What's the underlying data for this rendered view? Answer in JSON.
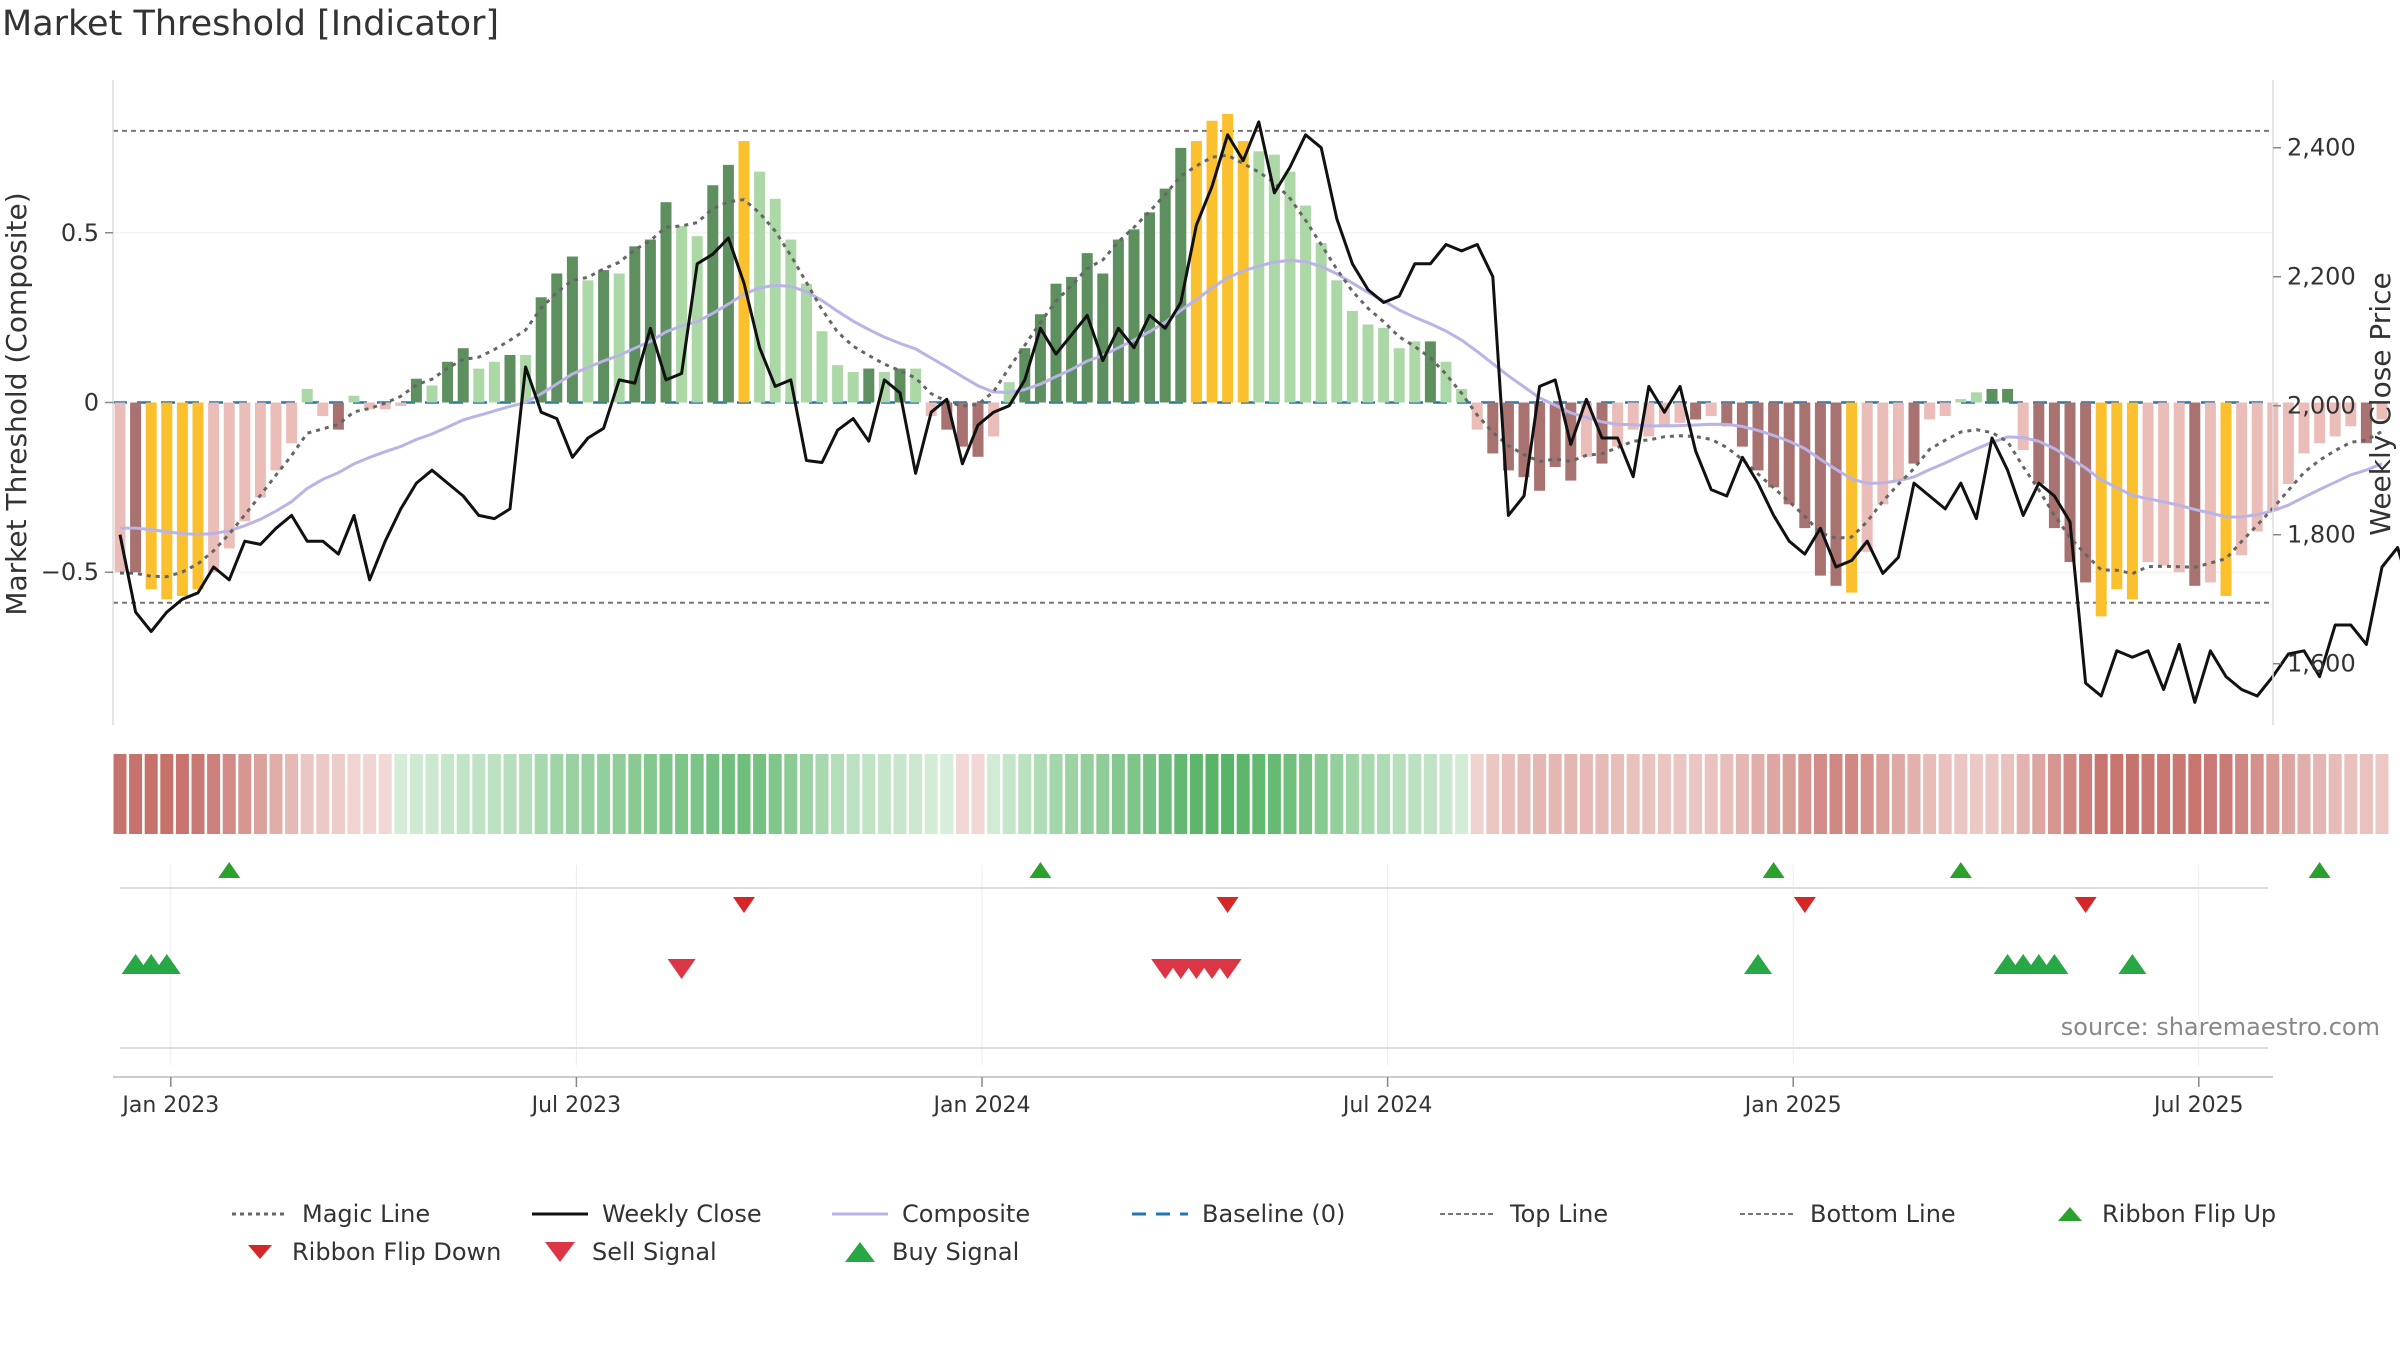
{
  "header": {
    "title": "Market Threshold [Indicator]"
  },
  "footer": {
    "source": "source: sharemaestro.com"
  },
  "legend": {
    "items": [
      {
        "label": "Magic Line",
        "kind": "dotted-line",
        "color": "#666666"
      },
      {
        "label": "Weekly Close",
        "kind": "solid-line",
        "color": "#111111"
      },
      {
        "label": "Composite",
        "kind": "solid-line",
        "color": "#b9b3e6"
      },
      {
        "label": "Baseline (0)",
        "kind": "dashed-line",
        "color": "#1f77b4"
      },
      {
        "label": "Top Line",
        "kind": "thin-dotted-line",
        "color": "#777777"
      },
      {
        "label": "Bottom Line",
        "kind": "thin-dotted-line",
        "color": "#777777"
      },
      {
        "label": "Ribbon Flip Up",
        "kind": "triangle-up",
        "color": "#2ca02c"
      },
      {
        "label": "Ribbon Flip Down",
        "kind": "triangle-down",
        "color": "#d62728"
      },
      {
        "label": "Sell Signal",
        "kind": "triangle-down-large",
        "color": "#dc3545"
      },
      {
        "label": "Buy Signal",
        "kind": "triangle-up-large",
        "color": "#28a745"
      }
    ]
  },
  "chart_data": {
    "type": "bar",
    "title": "Market Threshold [Indicator]",
    "ylabel_left": "Market Threshold (Composite)",
    "ylabel_right": "Weekly Close Price",
    "ylim_left": [
      -0.95,
      0.95
    ],
    "ylim_right": [
      1505,
      2505
    ],
    "yticks_left": [
      {
        "v": 0.5,
        "label": "0.5"
      },
      {
        "v": 0,
        "label": "0"
      },
      {
        "v": -0.5,
        "label": "−0.5"
      }
    ],
    "yticks_right": [
      {
        "v": 2400,
        "label": "2,400"
      },
      {
        "v": 2200,
        "label": "2,200"
      },
      {
        "v": 2000,
        "label": "2,000"
      },
      {
        "v": 1800,
        "label": "1,800"
      },
      {
        "v": 1600,
        "label": "1,600"
      }
    ],
    "xticks": [
      {
        "w": 3,
        "label": "Jan 2023"
      },
      {
        "w": 29,
        "label": "Jul 2023"
      },
      {
        "w": 55,
        "label": "Jan 2024"
      },
      {
        "w": 81,
        "label": "Jul 2024"
      },
      {
        "w": 107,
        "label": "Jan 2025"
      },
      {
        "w": 133,
        "label": "Jul 2025"
      }
    ],
    "top_line": 0.8,
    "bottom_line": -0.59,
    "baseline": 0,
    "colors": {
      "strong_pos": "#5e8f5e",
      "weak_pos": "#acd8a7",
      "extreme": "#fbc02d",
      "strong_neg": "#a87270",
      "weak_neg": "#ebbdb8",
      "close": "#111111",
      "composite": "#b9b3e6",
      "magic": "#666666",
      "baseline": "#1f77b4",
      "buy": "#28a745",
      "sell": "#dc3545",
      "flip_up": "#2ca02c",
      "flip_down": "#d62728"
    },
    "bars": [
      {
        "v": -0.5,
        "c": "weak_neg"
      },
      {
        "v": -0.5,
        "c": "strong_neg"
      },
      {
        "v": -0.55,
        "c": "extreme"
      },
      {
        "v": -0.58,
        "c": "extreme"
      },
      {
        "v": -0.57,
        "c": "extreme"
      },
      {
        "v": -0.55,
        "c": "extreme"
      },
      {
        "v": -0.5,
        "c": "weak_neg"
      },
      {
        "v": -0.43,
        "c": "weak_neg"
      },
      {
        "v": -0.35,
        "c": "weak_neg"
      },
      {
        "v": -0.28,
        "c": "weak_neg"
      },
      {
        "v": -0.2,
        "c": "weak_neg"
      },
      {
        "v": -0.12,
        "c": "weak_neg"
      },
      {
        "v": 0.04,
        "c": "weak_pos"
      },
      {
        "v": -0.04,
        "c": "weak_neg"
      },
      {
        "v": -0.08,
        "c": "strong_neg"
      },
      {
        "v": 0.02,
        "c": "weak_pos"
      },
      {
        "v": -0.02,
        "c": "weak_neg"
      },
      {
        "v": -0.02,
        "c": "weak_neg"
      },
      {
        "v": -0.01,
        "c": "weak_neg"
      },
      {
        "v": 0.07,
        "c": "strong_pos"
      },
      {
        "v": 0.05,
        "c": "weak_pos"
      },
      {
        "v": 0.12,
        "c": "strong_pos"
      },
      {
        "v": 0.16,
        "c": "strong_pos"
      },
      {
        "v": 0.1,
        "c": "weak_pos"
      },
      {
        "v": 0.12,
        "c": "weak_pos"
      },
      {
        "v": 0.14,
        "c": "strong_pos"
      },
      {
        "v": 0.14,
        "c": "weak_pos"
      },
      {
        "v": 0.31,
        "c": "strong_pos"
      },
      {
        "v": 0.38,
        "c": "strong_pos"
      },
      {
        "v": 0.43,
        "c": "strong_pos"
      },
      {
        "v": 0.36,
        "c": "weak_pos"
      },
      {
        "v": 0.39,
        "c": "strong_pos"
      },
      {
        "v": 0.38,
        "c": "weak_pos"
      },
      {
        "v": 0.46,
        "c": "strong_pos"
      },
      {
        "v": 0.48,
        "c": "strong_pos"
      },
      {
        "v": 0.59,
        "c": "strong_pos"
      },
      {
        "v": 0.52,
        "c": "weak_pos"
      },
      {
        "v": 0.49,
        "c": "weak_pos"
      },
      {
        "v": 0.64,
        "c": "strong_pos"
      },
      {
        "v": 0.7,
        "c": "strong_pos"
      },
      {
        "v": 0.77,
        "c": "extreme"
      },
      {
        "v": 0.68,
        "c": "weak_pos"
      },
      {
        "v": 0.6,
        "c": "weak_pos"
      },
      {
        "v": 0.48,
        "c": "weak_pos"
      },
      {
        "v": 0.35,
        "c": "weak_pos"
      },
      {
        "v": 0.21,
        "c": "weak_pos"
      },
      {
        "v": 0.11,
        "c": "weak_pos"
      },
      {
        "v": 0.09,
        "c": "weak_pos"
      },
      {
        "v": 0.1,
        "c": "strong_pos"
      },
      {
        "v": 0.09,
        "c": "weak_pos"
      },
      {
        "v": 0.1,
        "c": "strong_pos"
      },
      {
        "v": 0.1,
        "c": "weak_pos"
      },
      {
        "v": -0.04,
        "c": "weak_neg"
      },
      {
        "v": -0.08,
        "c": "strong_neg"
      },
      {
        "v": -0.13,
        "c": "strong_neg"
      },
      {
        "v": -0.16,
        "c": "strong_neg"
      },
      {
        "v": -0.1,
        "c": "weak_neg"
      },
      {
        "v": 0.06,
        "c": "weak_pos"
      },
      {
        "v": 0.16,
        "c": "strong_pos"
      },
      {
        "v": 0.26,
        "c": "strong_pos"
      },
      {
        "v": 0.35,
        "c": "strong_pos"
      },
      {
        "v": 0.37,
        "c": "strong_pos"
      },
      {
        "v": 0.44,
        "c": "strong_pos"
      },
      {
        "v": 0.38,
        "c": "strong_pos"
      },
      {
        "v": 0.48,
        "c": "strong_pos"
      },
      {
        "v": 0.51,
        "c": "strong_pos"
      },
      {
        "v": 0.56,
        "c": "strong_pos"
      },
      {
        "v": 0.63,
        "c": "strong_pos"
      },
      {
        "v": 0.75,
        "c": "strong_pos"
      },
      {
        "v": 0.77,
        "c": "extreme"
      },
      {
        "v": 0.83,
        "c": "extreme"
      },
      {
        "v": 0.85,
        "c": "extreme"
      },
      {
        "v": 0.77,
        "c": "extreme"
      },
      {
        "v": 0.74,
        "c": "weak_pos"
      },
      {
        "v": 0.73,
        "c": "weak_pos"
      },
      {
        "v": 0.68,
        "c": "weak_pos"
      },
      {
        "v": 0.58,
        "c": "weak_pos"
      },
      {
        "v": 0.47,
        "c": "weak_pos"
      },
      {
        "v": 0.36,
        "c": "weak_pos"
      },
      {
        "v": 0.27,
        "c": "weak_pos"
      },
      {
        "v": 0.23,
        "c": "weak_pos"
      },
      {
        "v": 0.22,
        "c": "weak_pos"
      },
      {
        "v": 0.16,
        "c": "weak_pos"
      },
      {
        "v": 0.18,
        "c": "weak_pos"
      },
      {
        "v": 0.18,
        "c": "strong_pos"
      },
      {
        "v": 0.12,
        "c": "weak_pos"
      },
      {
        "v": 0.04,
        "c": "weak_pos"
      },
      {
        "v": -0.08,
        "c": "weak_neg"
      },
      {
        "v": -0.15,
        "c": "strong_neg"
      },
      {
        "v": -0.2,
        "c": "strong_neg"
      },
      {
        "v": -0.22,
        "c": "strong_neg"
      },
      {
        "v": -0.26,
        "c": "strong_neg"
      },
      {
        "v": -0.19,
        "c": "strong_neg"
      },
      {
        "v": -0.23,
        "c": "strong_neg"
      },
      {
        "v": -0.16,
        "c": "weak_neg"
      },
      {
        "v": -0.18,
        "c": "strong_neg"
      },
      {
        "v": -0.13,
        "c": "weak_neg"
      },
      {
        "v": -0.08,
        "c": "weak_neg"
      },
      {
        "v": -0.1,
        "c": "weak_neg"
      },
      {
        "v": -0.07,
        "c": "weak_neg"
      },
      {
        "v": -0.06,
        "c": "weak_neg"
      },
      {
        "v": -0.05,
        "c": "strong_neg"
      },
      {
        "v": -0.04,
        "c": "weak_neg"
      },
      {
        "v": -0.07,
        "c": "strong_neg"
      },
      {
        "v": -0.13,
        "c": "strong_neg"
      },
      {
        "v": -0.2,
        "c": "strong_neg"
      },
      {
        "v": -0.25,
        "c": "strong_neg"
      },
      {
        "v": -0.3,
        "c": "strong_neg"
      },
      {
        "v": -0.37,
        "c": "strong_neg"
      },
      {
        "v": -0.51,
        "c": "strong_neg"
      },
      {
        "v": -0.54,
        "c": "strong_neg"
      },
      {
        "v": -0.56,
        "c": "extreme"
      },
      {
        "v": -0.44,
        "c": "weak_neg"
      },
      {
        "v": -0.3,
        "c": "weak_neg"
      },
      {
        "v": -0.23,
        "c": "weak_neg"
      },
      {
        "v": -0.18,
        "c": "strong_neg"
      },
      {
        "v": -0.05,
        "c": "weak_neg"
      },
      {
        "v": -0.04,
        "c": "weak_neg"
      },
      {
        "v": 0.01,
        "c": "weak_pos"
      },
      {
        "v": 0.03,
        "c": "weak_pos"
      },
      {
        "v": 0.04,
        "c": "strong_pos"
      },
      {
        "v": 0.04,
        "c": "strong_pos"
      },
      {
        "v": -0.14,
        "c": "weak_neg"
      },
      {
        "v": -0.24,
        "c": "strong_neg"
      },
      {
        "v": -0.37,
        "c": "strong_neg"
      },
      {
        "v": -0.47,
        "c": "strong_neg"
      },
      {
        "v": -0.53,
        "c": "strong_neg"
      },
      {
        "v": -0.63,
        "c": "extreme"
      },
      {
        "v": -0.55,
        "c": "extreme"
      },
      {
        "v": -0.58,
        "c": "extreme"
      },
      {
        "v": -0.47,
        "c": "weak_neg"
      },
      {
        "v": -0.48,
        "c": "weak_neg"
      },
      {
        "v": -0.5,
        "c": "weak_neg"
      },
      {
        "v": -0.54,
        "c": "strong_neg"
      },
      {
        "v": -0.53,
        "c": "weak_neg"
      },
      {
        "v": -0.57,
        "c": "extreme"
      },
      {
        "v": -0.45,
        "c": "weak_neg"
      },
      {
        "v": -0.38,
        "c": "weak_neg"
      },
      {
        "v": -0.32,
        "c": "weak_neg"
      },
      {
        "v": -0.24,
        "c": "weak_neg"
      },
      {
        "v": -0.15,
        "c": "weak_neg"
      },
      {
        "v": -0.12,
        "c": "weak_neg"
      },
      {
        "v": -0.1,
        "c": "weak_neg"
      },
      {
        "v": -0.07,
        "c": "weak_neg"
      },
      {
        "v": -0.12,
        "c": "strong_neg"
      },
      {
        "v": -0.05,
        "c": "weak_neg"
      }
    ],
    "weekly_close": [
      1800,
      1680,
      1650,
      1680,
      1700,
      1710,
      1750,
      1730,
      1790,
      1785,
      1810,
      1830,
      1790,
      1790,
      1770,
      1830,
      1730,
      1790,
      1840,
      1880,
      1900,
      1880,
      1860,
      1830,
      1825,
      1840,
      2060,
      1990,
      1980,
      1920,
      1950,
      1965,
      2040,
      2035,
      2120,
      2040,
      2050,
      2220,
      2235,
      2260,
      2190,
      2090,
      2030,
      2040,
      1915,
      1912,
      1962,
      1980,
      1945,
      2040,
      2020,
      1895,
      1990,
      2010,
      1910,
      1970,
      1990,
      2000,
      2040,
      2120,
      2080,
      2110,
      2140,
      2070,
      2120,
      2090,
      2140,
      2120,
      2160,
      2280,
      2340,
      2420,
      2380,
      2440,
      2330,
      2370,
      2420,
      2400,
      2290,
      2220,
      2180,
      2160,
      2170,
      2220,
      2220,
      2250,
      2240,
      2250,
      2200,
      1830,
      1860,
      2030,
      2040,
      1940,
      2010,
      1950,
      1950,
      1890,
      2030,
      1990,
      2030,
      1930,
      1870,
      1860,
      1920,
      1880,
      1830,
      1790,
      1770,
      1810,
      1750,
      1760,
      1790,
      1740,
      1765,
      1880,
      1860,
      1840,
      1880,
      1825,
      1950,
      1900,
      1830,
      1880,
      1860,
      1820,
      1570,
      1550,
      1620,
      1610,
      1620,
      1560,
      1630,
      1540,
      1620,
      1580,
      1560,
      1550,
      1580,
      1615,
      1620,
      1580,
      1660,
      1660,
      1630,
      1750,
      1780,
      1700,
      1700,
      1830
    ]
  },
  "signals": {
    "flip_up": [
      7,
      59,
      106,
      118,
      141
    ],
    "flip_down": [
      40,
      71,
      108,
      126
    ],
    "buy": [
      1,
      2,
      3,
      105,
      121,
      122,
      123,
      124,
      129
    ],
    "sell": [
      36,
      67,
      68,
      69,
      70,
      71
    ]
  }
}
